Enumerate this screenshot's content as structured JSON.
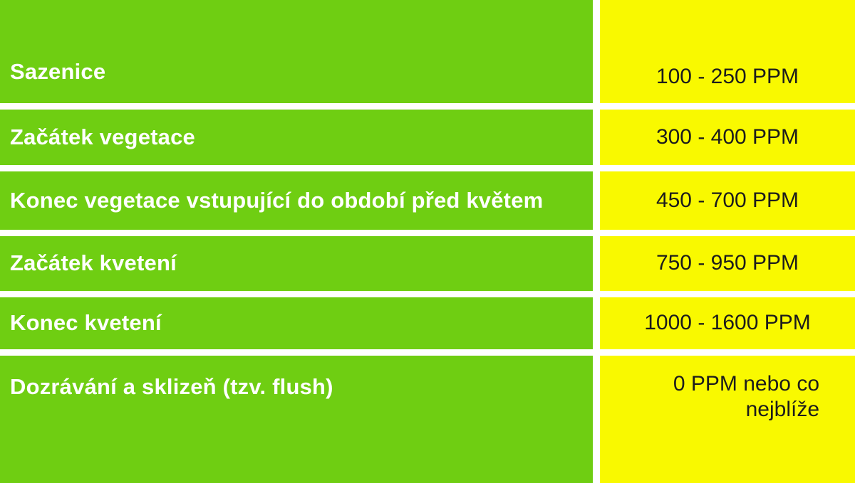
{
  "chart_data": {
    "type": "table",
    "rows": [
      [
        "Sazenice",
        "100 - 250 PPM"
      ],
      [
        "Začátek vegetace",
        "300 - 400 PPM"
      ],
      [
        "Konec vegetace vstupující do období před květem",
        "450 - 700 PPM"
      ],
      [
        "Začátek kvetení",
        "750 - 950 PPM"
      ],
      [
        "Konec kvetení",
        "1000 - 1600 PPM"
      ],
      [
        "Dozrávání a sklizeň (tzv. flush)",
        "0 PPM nebo co nejblíže"
      ]
    ],
    "layout": {
      "columns": 2,
      "grid": "white gutters between all cells",
      "legend": "none",
      "title": ""
    },
    "colors": {
      "stage_cell_bg": "#6FCE12",
      "value_cell_bg": "#F9F900",
      "gutter": "#FFFFFF",
      "stage_text": "#FFFFFF",
      "value_text": "#1C1C1C"
    }
  }
}
